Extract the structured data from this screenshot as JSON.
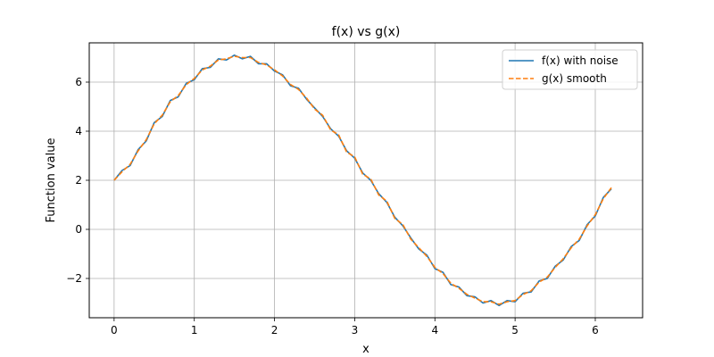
{
  "chart_data": {
    "type": "line",
    "title": "f(x) vs g(x)",
    "xlabel": "x",
    "ylabel": "Function value",
    "xlim": [
      -0.31,
      6.59
    ],
    "ylim": [
      -3.6,
      7.6
    ],
    "xticks": [
      0,
      1,
      2,
      3,
      4,
      5,
      6
    ],
    "yticks": [
      -2,
      0,
      2,
      4,
      6
    ],
    "ytick_labels": [
      "−2",
      "0",
      "2",
      "4",
      "6"
    ],
    "grid": true,
    "legend_position": "top-right",
    "series": [
      {
        "name": "f(x) with noise",
        "color": "#1f77b4",
        "style": "solid",
        "x": [
          0.0,
          0.1,
          0.2,
          0.3,
          0.4,
          0.5,
          0.6,
          0.7,
          0.8,
          0.9,
          1.0,
          1.1,
          1.2,
          1.3,
          1.4,
          1.5,
          1.6,
          1.7,
          1.8,
          1.9,
          2.0,
          2.1,
          2.2,
          2.3,
          2.4,
          2.5,
          2.6,
          2.7,
          2.8,
          2.9,
          3.0,
          3.1,
          3.2,
          3.3,
          3.4,
          3.5,
          3.6,
          3.7,
          3.8,
          3.9,
          4.0,
          4.1,
          4.2,
          4.3,
          4.4,
          4.5,
          4.6,
          4.7,
          4.8,
          4.9,
          5.0,
          5.1,
          5.2,
          5.3,
          5.4,
          5.5,
          5.6,
          5.7,
          5.8,
          5.9,
          6.0,
          6.1,
          6.2
        ],
        "y": [
          2.0,
          2.4,
          2.6,
          3.25,
          3.6,
          4.35,
          4.6,
          5.25,
          5.4,
          5.95,
          6.1,
          6.55,
          6.6,
          6.95,
          6.9,
          7.1,
          6.95,
          7.05,
          6.75,
          6.75,
          6.45,
          6.3,
          5.85,
          5.75,
          5.3,
          4.95,
          4.6,
          4.1,
          3.8,
          3.2,
          2.9,
          2.3,
          2.0,
          1.45,
          1.1,
          0.5,
          0.15,
          -0.35,
          -0.8,
          -1.05,
          -1.6,
          -1.75,
          -2.25,
          -2.35,
          -2.7,
          -2.75,
          -3.0,
          -2.9,
          -3.1,
          -2.9,
          -2.95,
          -2.6,
          -2.55,
          -2.1,
          -2.0,
          -1.5,
          -1.25,
          -0.7,
          -0.45,
          0.2,
          0.55,
          1.3,
          1.65
        ]
      },
      {
        "name": "g(x) smooth",
        "color": "#ff7f0e",
        "style": "dashed",
        "x": [
          0.0,
          0.1,
          0.2,
          0.3,
          0.4,
          0.5,
          0.6,
          0.7,
          0.8,
          0.9,
          1.0,
          1.1,
          1.2,
          1.3,
          1.4,
          1.5,
          1.6,
          1.7,
          1.8,
          1.9,
          2.0,
          2.1,
          2.2,
          2.3,
          2.4,
          2.5,
          2.6,
          2.7,
          2.8,
          2.9,
          3.0,
          3.1,
          3.2,
          3.3,
          3.4,
          3.5,
          3.6,
          3.7,
          3.8,
          3.9,
          4.0,
          4.1,
          4.2,
          4.3,
          4.4,
          4.5,
          4.6,
          4.7,
          4.8,
          4.9,
          5.0,
          5.1,
          5.2,
          5.3,
          5.4,
          5.5,
          5.6,
          5.7,
          5.8,
          5.9,
          6.0,
          6.1,
          6.2
        ],
        "y": [
          2.0,
          2.35,
          2.65,
          3.2,
          3.65,
          4.3,
          4.65,
          5.2,
          5.45,
          5.9,
          6.15,
          6.5,
          6.65,
          6.9,
          6.95,
          7.05,
          7.0,
          7.0,
          6.8,
          6.7,
          6.5,
          6.25,
          5.9,
          5.7,
          5.35,
          4.9,
          4.65,
          4.05,
          3.85,
          3.15,
          2.95,
          2.25,
          2.05,
          1.4,
          1.15,
          0.45,
          0.2,
          -0.4,
          -0.75,
          -1.1,
          -1.55,
          -1.8,
          -2.2,
          -2.4,
          -2.65,
          -2.8,
          -2.95,
          -2.95,
          -3.05,
          -2.95,
          -2.9,
          -2.65,
          -2.5,
          -2.15,
          -1.95,
          -1.55,
          -1.2,
          -0.75,
          -0.4,
          0.15,
          0.6,
          1.25,
          1.7
        ]
      }
    ]
  }
}
